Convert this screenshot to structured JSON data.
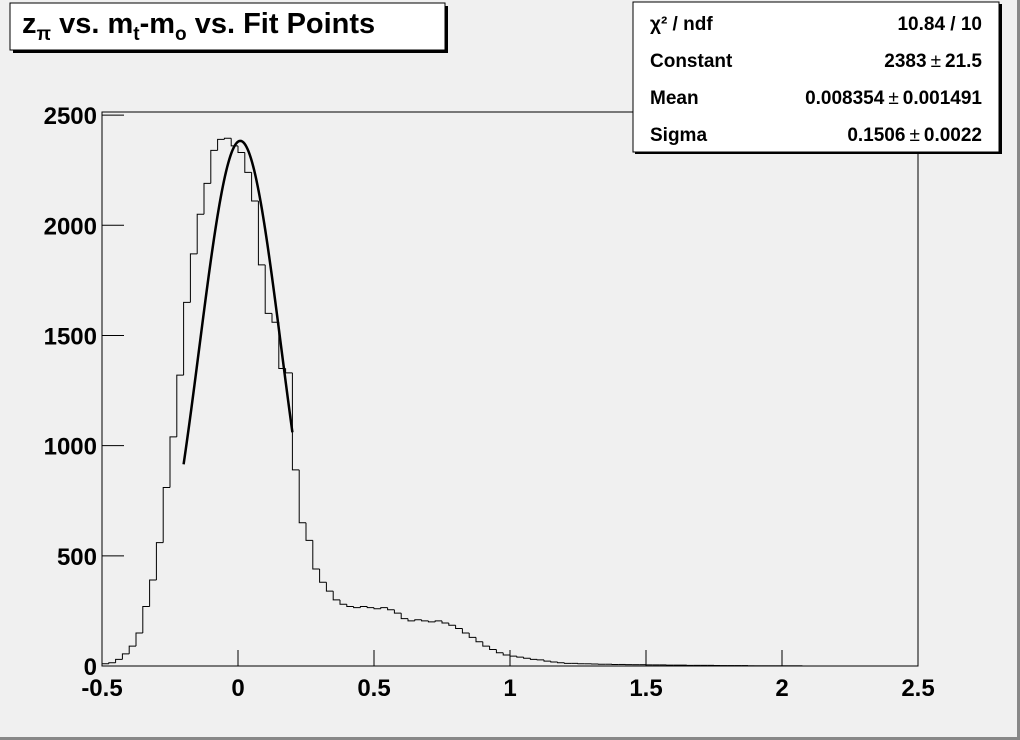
{
  "chart_data": {
    "type": "histogram",
    "title": [
      {
        "text": "z"
      },
      {
        "text": "π",
        "sub": true
      },
      {
        "text": " vs. m"
      },
      {
        "text": "t",
        "sub": true
      },
      {
        "text": "-m"
      },
      {
        "text": "o",
        "sub": true
      },
      {
        "text": " vs. Fit Points"
      }
    ],
    "bins": [
      -0.5,
      -0.475,
      -0.45,
      -0.425,
      -0.4,
      -0.375,
      -0.35,
      -0.325,
      -0.3,
      -0.275,
      -0.25,
      -0.225,
      -0.2,
      -0.175,
      -0.15,
      -0.125,
      -0.1,
      -0.075,
      -0.05,
      -0.025,
      0,
      0.025,
      0.05,
      0.075,
      0.1,
      0.125,
      0.15,
      0.175,
      0.2,
      0.225,
      0.25,
      0.275,
      0.3,
      0.325,
      0.35,
      0.375,
      0.4,
      0.425,
      0.45,
      0.475,
      0.5,
      0.525,
      0.55,
      0.575,
      0.6,
      0.625,
      0.65,
      0.675,
      0.7,
      0.725,
      0.75,
      0.775,
      0.8,
      0.825,
      0.85,
      0.875,
      0.9,
      0.925,
      0.95,
      0.975,
      1,
      1.025,
      1.05,
      1.075,
      1.1,
      1.125,
      1.15,
      1.175,
      1.2,
      1.225,
      1.25,
      1.275,
      1.3,
      1.325,
      1.35,
      1.375,
      1.4,
      1.425,
      1.45,
      1.475,
      1.5,
      1.525,
      1.55,
      1.575,
      1.6,
      1.625,
      1.65,
      1.675,
      1.7,
      1.725,
      1.75,
      1.775,
      1.8,
      1.825,
      1.85,
      1.875,
      1.9,
      1.925,
      1.95,
      1.975,
      2,
      2.025,
      2.05,
      2.075,
      2.1,
      2.125,
      2.15,
      2.175,
      2.2,
      2.225,
      2.25,
      2.275,
      2.3,
      2.325,
      2.35,
      2.375,
      2.4,
      2.425,
      2.45,
      2.475,
      2.5
    ],
    "values": [
      10,
      15,
      30,
      55,
      90,
      150,
      270,
      390,
      560,
      810,
      1040,
      1320,
      1650,
      1870,
      2050,
      2190,
      2340,
      2390,
      2395,
      2360,
      2330,
      2240,
      2110,
      1820,
      1600,
      1560,
      1350,
      1330,
      890,
      650,
      570,
      440,
      380,
      340,
      300,
      280,
      270,
      265,
      270,
      265,
      260,
      265,
      255,
      240,
      215,
      205,
      210,
      205,
      200,
      205,
      195,
      185,
      170,
      150,
      130,
      110,
      90,
      75,
      60,
      50,
      45,
      40,
      35,
      30,
      28,
      22,
      18,
      15,
      12,
      12,
      10,
      10,
      9,
      8,
      8,
      7,
      7,
      6,
      6,
      6,
      5,
      5,
      5,
      4,
      4,
      4,
      3,
      3,
      3,
      3,
      2,
      2,
      2,
      2,
      2,
      1,
      1,
      1,
      1,
      1,
      1,
      1,
      1,
      0,
      0,
      0,
      0,
      0,
      0,
      0,
      0,
      0,
      0,
      0,
      0,
      0,
      0,
      0,
      0,
      0
    ],
    "color": "#000000",
    "fit_color": "#000000",
    "fit_range": [
      -0.2,
      0.2
    ],
    "xlim": [
      -0.5,
      2.5
    ],
    "xticks": [
      -0.5,
      0,
      0.5,
      1,
      1.5,
      2,
      2.5
    ],
    "ylim": [
      0,
      2514
    ],
    "yticks": [
      0,
      500,
      1000,
      1500,
      2000,
      2500
    ],
    "stats": {
      "pm": "±",
      "rows": [
        {
          "label": "χ² / ndf",
          "value": "10.84 / 10"
        },
        {
          "label": "Constant",
          "value": 2383,
          "error": 21.5
        },
        {
          "label": "Mean",
          "value": 0.008354,
          "error": 0.001491
        },
        {
          "label": "Sigma",
          "value": 0.1506,
          "error": 0.0022
        }
      ]
    }
  }
}
